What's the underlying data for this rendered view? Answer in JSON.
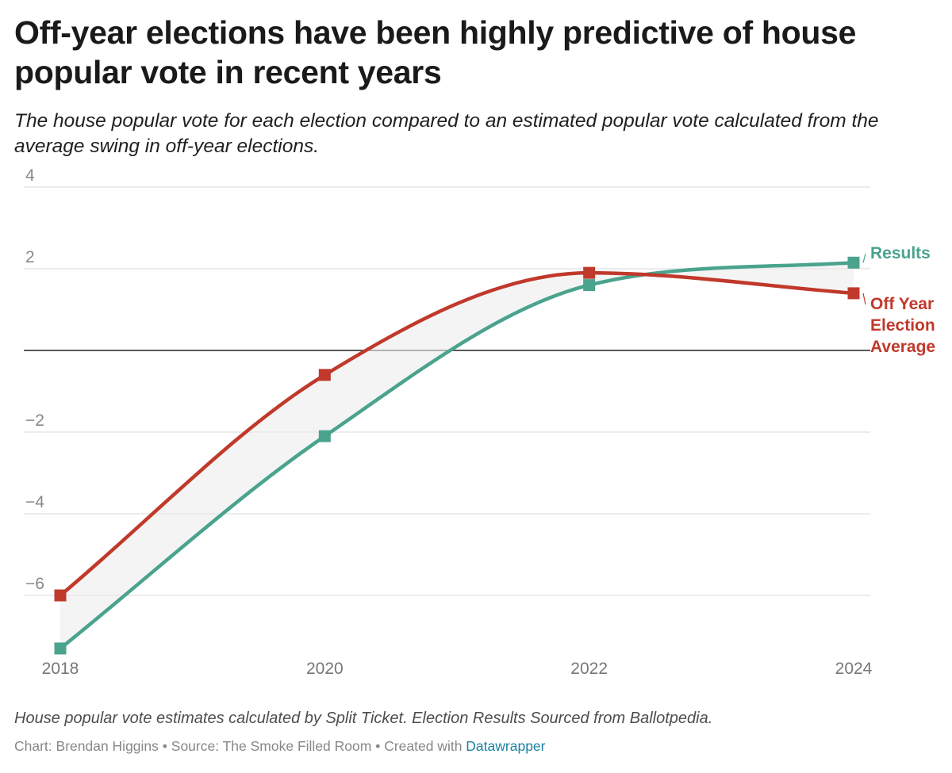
{
  "title": "Off-year elections have been highly predictive of house popular vote in recent years",
  "subtitle": "The house popular vote for each election compared to an estimated popular vote calculated from the average swing in off-year elections.",
  "notes": "House popular vote estimates calculated by Split Ticket. Election Results Sourced from Ballotpedia.",
  "credits": {
    "author": "Chart: Brendan Higgins",
    "separator": " • ",
    "source": "Source: The Smoke Filled Room",
    "created": "Created with ",
    "tool": "Datawrapper"
  },
  "colors": {
    "results": "#4aa38d",
    "off_year": "#c0392b",
    "band": "#ececec",
    "grid": "#e1e1e1",
    "zero": "#222222",
    "tick_text": "#888888"
  },
  "chart_data": {
    "type": "line",
    "x": [
      2018,
      2020,
      2022,
      2024
    ],
    "x_tick_labels": [
      "2018",
      "2020",
      "2022",
      "2024"
    ],
    "y_ticks": [
      4,
      2,
      -2,
      -4,
      -6
    ],
    "y_tick_labels": [
      "4",
      "2",
      "−2",
      "−4",
      "−6"
    ],
    "ylim": [
      -7.3,
      4
    ],
    "series": [
      {
        "name": "Results",
        "label_lines": [
          "Results"
        ],
        "color": "#4aa38d",
        "values": [
          -7.3,
          -2.1,
          1.6,
          2.15
        ]
      },
      {
        "name": "Off Year Election Average",
        "label_lines": [
          "Off Year",
          "Election",
          "Average"
        ],
        "color": "#c0392b",
        "values": [
          -6.0,
          -0.6,
          1.9,
          1.4
        ]
      }
    ],
    "fill_between": true,
    "zero_line": true
  }
}
